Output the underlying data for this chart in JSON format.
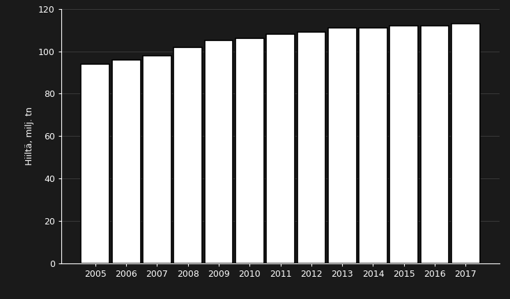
{
  "categories": [
    "2005",
    "2006",
    "2007",
    "2008",
    "2009",
    "2010",
    "2011",
    "2012",
    "2013",
    "2014",
    "2015",
    "2016",
    "2017"
  ],
  "values": [
    94,
    96,
    98,
    102,
    105,
    106,
    108,
    109,
    111,
    111,
    112,
    112,
    113
  ],
  "bar_color": "#ffffff",
  "bar_edgecolor": "#000000",
  "background_color": "#1a1a1a",
  "text_color": "#ffffff",
  "ylabel": "Hiiltä, milj. tn",
  "ylim": [
    0,
    120
  ],
  "yticks": [
    0,
    20,
    40,
    60,
    80,
    100,
    120
  ],
  "grid_color": "#666666",
  "bar_width": 0.92,
  "axis_fontsize": 9,
  "tick_fontsize": 9
}
